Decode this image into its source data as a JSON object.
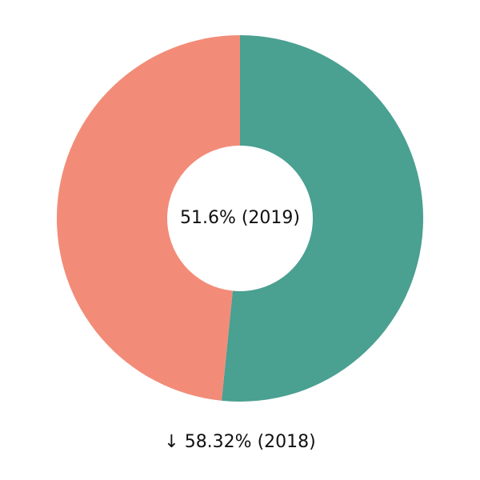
{
  "chart_data": {
    "type": "pie",
    "style": "donut",
    "values": [
      51.6,
      48.4
    ],
    "colors": [
      "#4aa091",
      "#f28c78"
    ],
    "center_label": "51.6% (2019)",
    "footer_label": "↓ 58.32% (2018)"
  }
}
